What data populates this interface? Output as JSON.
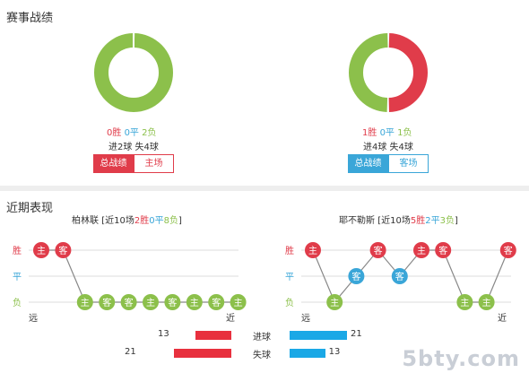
{
  "colors": {
    "win": "#e03c4a",
    "draw": "#3aa6d8",
    "loss": "#8cc04b",
    "bar_red": "#e8303e",
    "bar_blue": "#1aa8e6",
    "line": "#888888"
  },
  "record": {
    "title": "赛事战绩",
    "teams": [
      {
        "wins": 0,
        "draws": 0,
        "losses": 2,
        "win_text": "0胜",
        "draw_text": "0平",
        "loss_text": "2负",
        "goals_text": "进2球 失4球",
        "tab_total": "总战绩",
        "tab_venue": "主场"
      },
      {
        "wins": 1,
        "draws": 0,
        "losses": 1,
        "win_text": "1胜",
        "draw_text": "0平",
        "loss_text": "1负",
        "goals_text": "进4球 失4球",
        "tab_total": "总战绩",
        "tab_venue": "客场"
      }
    ]
  },
  "recent": {
    "title": "近期表现",
    "y_labels": {
      "win": "胜",
      "draw": "平",
      "loss": "负"
    },
    "x_labels": {
      "far": "远",
      "near": "近"
    },
    "teams": [
      {
        "name": "柏林联",
        "summary_prefix": "[近10场",
        "summary_win": "2胜",
        "summary_draw": "0平",
        "summary_loss": "8负",
        "summary_suffix": "]",
        "results": [
          "W",
          "W",
          "L",
          "L",
          "L",
          "L",
          "L",
          "L",
          "L",
          "L"
        ],
        "venues": [
          "主",
          "客",
          "主",
          "客",
          "客",
          "主",
          "客",
          "主",
          "客",
          "主"
        ]
      },
      {
        "name": "耶不勒斯",
        "summary_prefix": "[近10场",
        "summary_win": "5胜",
        "summary_draw": "2平",
        "summary_loss": "3负",
        "summary_suffix": "]",
        "results": [
          "W",
          "L",
          "D",
          "W",
          "D",
          "W",
          "W",
          "L",
          "L",
          "W"
        ],
        "venues": [
          "主",
          "主",
          "客",
          "客",
          "客",
          "主",
          "客",
          "主",
          "主",
          "客"
        ]
      }
    ]
  },
  "goals": [
    {
      "label": "进球",
      "left": 13,
      "right": 21
    },
    {
      "label": "失球",
      "left": 21,
      "right": 13
    }
  ],
  "watermark": "5bty.com"
}
